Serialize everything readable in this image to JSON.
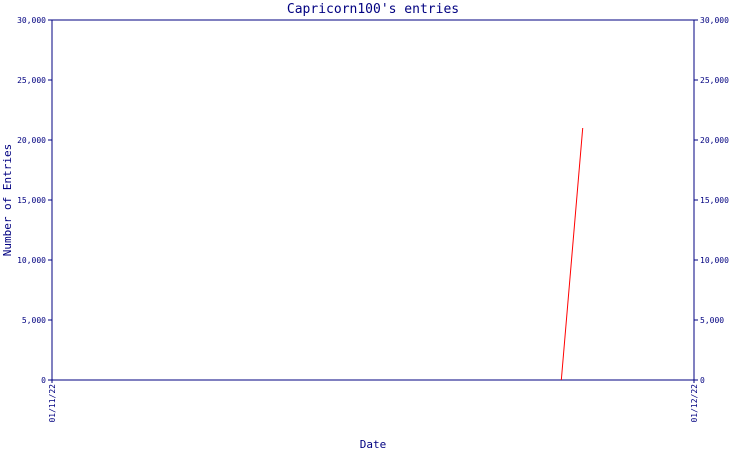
{
  "chart_data": {
    "type": "line",
    "title": "Capricorn100's entries",
    "xlabel": "Date",
    "ylabel": "Number of Entries",
    "x": [
      23.8,
      24.8
    ],
    "series": [
      {
        "color": "#ff0000",
        "values": [
          0,
          21000
        ]
      }
    ],
    "xlim": [
      0,
      30
    ],
    "xticks": [
      {
        "value": 0,
        "label": "01/11/22"
      },
      {
        "value": 30,
        "label": "01/12/22"
      }
    ],
    "ylim": [
      0,
      30000
    ],
    "yticks": [
      0,
      {
        "value": 5000,
        "label": "5,000"
      },
      {
        "value": 10000,
        "label": "10,000"
      },
      {
        "value": 15000,
        "label": "15,000"
      },
      {
        "value": 20000,
        "label": "20,000"
      },
      {
        "value": 25000,
        "label": "25,000"
      },
      {
        "value": 30000,
        "label": "30,000"
      }
    ],
    "axis_color": "#000080"
  }
}
